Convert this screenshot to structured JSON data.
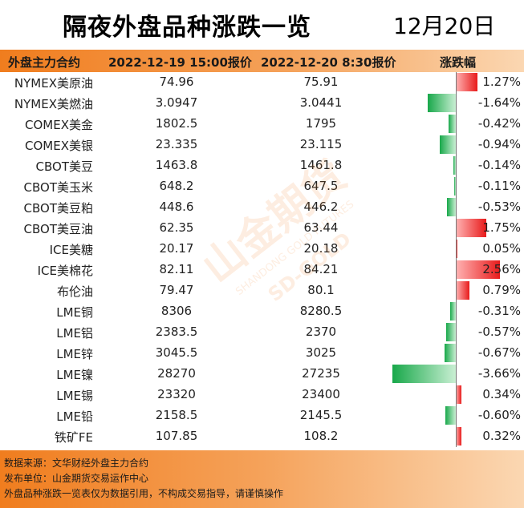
{
  "title": "隔夜外盘品种涨跌一览",
  "date": "12月20日",
  "headers": {
    "name": "外盘主力合约",
    "price1": "2022-12-19 15:00报价",
    "price2": "2022-12-20 8:30报价",
    "change": "涨跌幅"
  },
  "rows": [
    {
      "name": "NYMEX美原油",
      "p1": "74.96",
      "p2": "75.91",
      "pct": "1.27%",
      "change": 1.27
    },
    {
      "name": "NYMEX美燃油",
      "p1": "3.0947",
      "p2": "3.0441",
      "pct": "-1.64%",
      "change": -1.64
    },
    {
      "name": "COMEX美金",
      "p1": "1802.5",
      "p2": "1795",
      "pct": "-0.42%",
      "change": -0.42
    },
    {
      "name": "COMEX美银",
      "p1": "23.335",
      "p2": "23.115",
      "pct": "-0.94%",
      "change": -0.94
    },
    {
      "name": "CBOT美豆",
      "p1": "1463.8",
      "p2": "1461.8",
      "pct": "-0.14%",
      "change": -0.14
    },
    {
      "name": "CBOT美玉米",
      "p1": "648.2",
      "p2": "647.5",
      "pct": "-0.11%",
      "change": -0.11
    },
    {
      "name": "CBOT美豆粕",
      "p1": "448.6",
      "p2": "446.2",
      "pct": "-0.53%",
      "change": -0.53
    },
    {
      "name": "CBOT美豆油",
      "p1": "62.35",
      "p2": "63.44",
      "pct": "1.75%",
      "change": 1.75
    },
    {
      "name": "ICE美糖",
      "p1": "20.17",
      "p2": "20.18",
      "pct": "0.05%",
      "change": 0.05
    },
    {
      "name": "ICE美棉花",
      "p1": "82.11",
      "p2": "84.21",
      "pct": "2.56%",
      "change": 2.56
    },
    {
      "name": "布伦油",
      "p1": "79.47",
      "p2": "80.1",
      "pct": "0.79%",
      "change": 0.79
    },
    {
      "name": "LME铜",
      "p1": "8306",
      "p2": "8280.5",
      "pct": "-0.31%",
      "change": -0.31
    },
    {
      "name": "LME铝",
      "p1": "2383.5",
      "p2": "2370",
      "pct": "-0.57%",
      "change": -0.57
    },
    {
      "name": "LME锌",
      "p1": "3045.5",
      "p2": "3025",
      "pct": "-0.67%",
      "change": -0.67
    },
    {
      "name": "LME镍",
      "p1": "28270",
      "p2": "27235",
      "pct": "-3.66%",
      "change": -3.66
    },
    {
      "name": "LME锡",
      "p1": "23320",
      "p2": "23400",
      "pct": "0.34%",
      "change": 0.34
    },
    {
      "name": "LME铅",
      "p1": "2158.5",
      "p2": "2145.5",
      "pct": "-0.60%",
      "change": -0.6
    },
    {
      "name": "铁矿FE",
      "p1": "107.85",
      "p2": "108.2",
      "pct": "0.32%",
      "change": 0.32
    }
  ],
  "watermark": {
    "brand_cn": "山金期货",
    "brand_en": "SHANDONG GOLD FUTURES",
    "logo_text": "SD-GOLD"
  },
  "footer": {
    "line1": "数据来源：文华财经外盘主力合约",
    "line2": "发布单位：山金期货交易运作中心",
    "line3": "外盘品种涨跌一览表仅为数据引用，不构成交易指导，请谨慎操作"
  },
  "colors": {
    "up": "#e81b1b",
    "down": "#18a84a",
    "accent": "#f07d1e"
  }
}
